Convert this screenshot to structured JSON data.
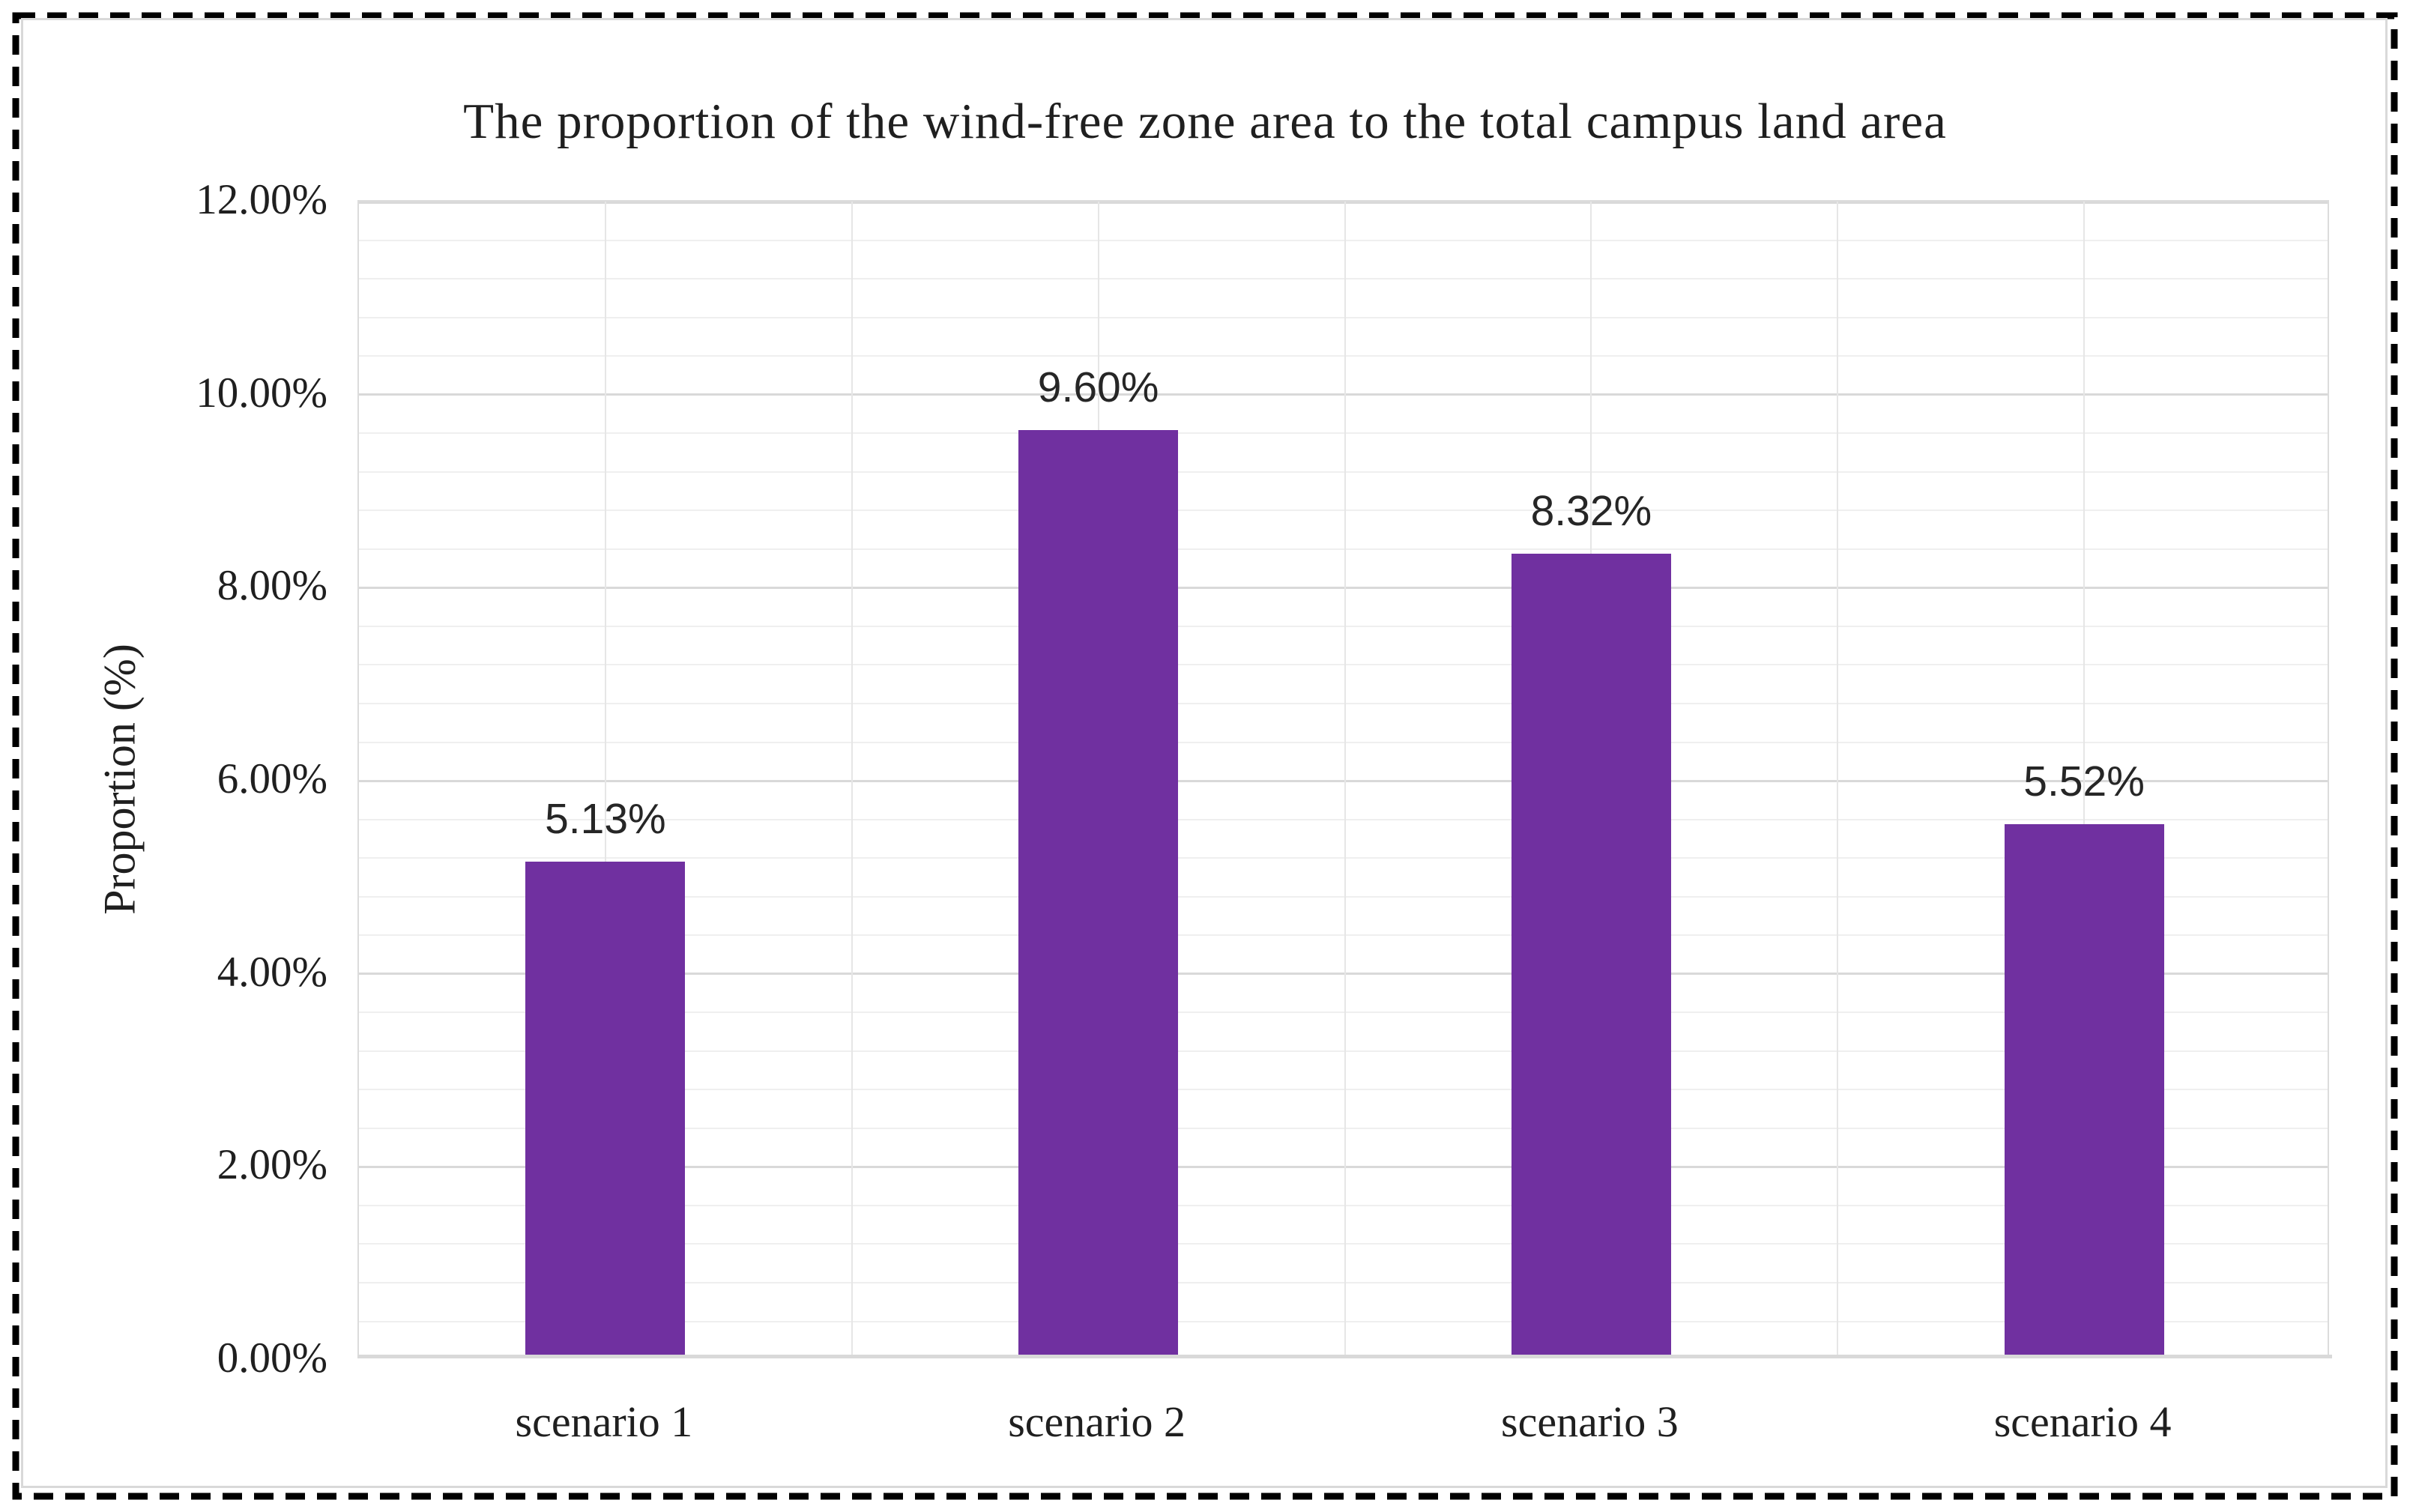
{
  "chart_data": {
    "type": "bar",
    "title": "The proportion of the wind-free zone area to the total campus land area",
    "ylabel": "Proportion (%)",
    "xlabel": "",
    "categories": [
      "scenario 1",
      "scenario 2",
      "scenario 3",
      "scenario 4"
    ],
    "values": [
      5.13,
      9.6,
      8.32,
      5.52
    ],
    "data_labels": [
      "5.13%",
      "9.60%",
      "8.32%",
      "5.52%"
    ],
    "y_ticks": [
      "0.00%",
      "2.00%",
      "4.00%",
      "6.00%",
      "8.00%",
      "10.00%",
      "12.00%"
    ],
    "ylim": [
      0,
      12
    ],
    "y_major_unit": 2,
    "y_minor_unit": 0.4,
    "grid": "major and minor horizontal, light vertical at half-category intervals",
    "legend_position": "none",
    "bar_color": "#7030A0",
    "colors": {
      "major_grid": "#D9D9D9",
      "minor_grid": "#EFEFEF",
      "vertical_grid": "#E6E6E6",
      "axis_line": "#D9D9D9",
      "text": "#1f1f1f",
      "frame_border": "#D9D9D9",
      "outer_dashed_border": "#000000",
      "background": "#ffffff"
    }
  }
}
